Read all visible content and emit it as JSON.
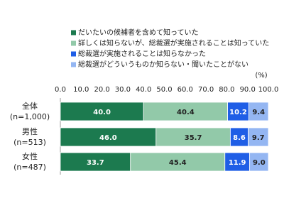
{
  "chart_data": {
    "type": "stacked_bar_horizontal",
    "unit_label": "(%)",
    "categories": [
      "全体\n(n=1,000)",
      "男性\n(n=513)",
      "女性\n(n=487)"
    ],
    "series": [
      {
        "name": "だいたいの候補者を含めて知っていた",
        "color": "#1c7a4f",
        "label_color": "#ffffff",
        "values": [
          40.0,
          46.0,
          33.7
        ],
        "value_labels": [
          "40.0",
          "46.0",
          "33.7"
        ]
      },
      {
        "name": "詳しくは知らないが、総裁選が実施されることは知っていた",
        "color": "#92c9a9",
        "label_color": "#222222",
        "values": [
          40.4,
          35.7,
          45.4
        ],
        "value_labels": [
          "40.4",
          "35.7",
          "45.4"
        ]
      },
      {
        "name": "総裁選が実施されることは知らなかった",
        "color": "#1f5ee6",
        "label_color": "#ffffff",
        "values": [
          10.2,
          8.6,
          11.9
        ],
        "value_labels": [
          "10.2",
          "8.6",
          "11.9"
        ]
      },
      {
        "name": "総裁選がどういうものか知らない・聞いたことがない",
        "color": "#94b6f2",
        "label_color": "#222222",
        "values": [
          9.4,
          9.7,
          9.0
        ],
        "value_labels": [
          "9.4",
          "9.7",
          "9.0"
        ]
      }
    ],
    "xlim": [
      0,
      100
    ],
    "xticks": [
      {
        "value": 0,
        "label": "0.0"
      },
      {
        "value": 10,
        "label": "10.0"
      },
      {
        "value": 20,
        "label": "20.0"
      },
      {
        "value": 30,
        "label": "30.0"
      },
      {
        "value": 40,
        "label": "40.0"
      },
      {
        "value": 50,
        "label": "50.0"
      },
      {
        "value": 60,
        "label": "60.0"
      },
      {
        "value": 70,
        "label": "70.0"
      },
      {
        "value": 80,
        "label": "80.0"
      },
      {
        "value": 90,
        "label": "90.0"
      },
      {
        "value": 100,
        "label": "100.0"
      }
    ],
    "grid": false,
    "legend": "top"
  }
}
